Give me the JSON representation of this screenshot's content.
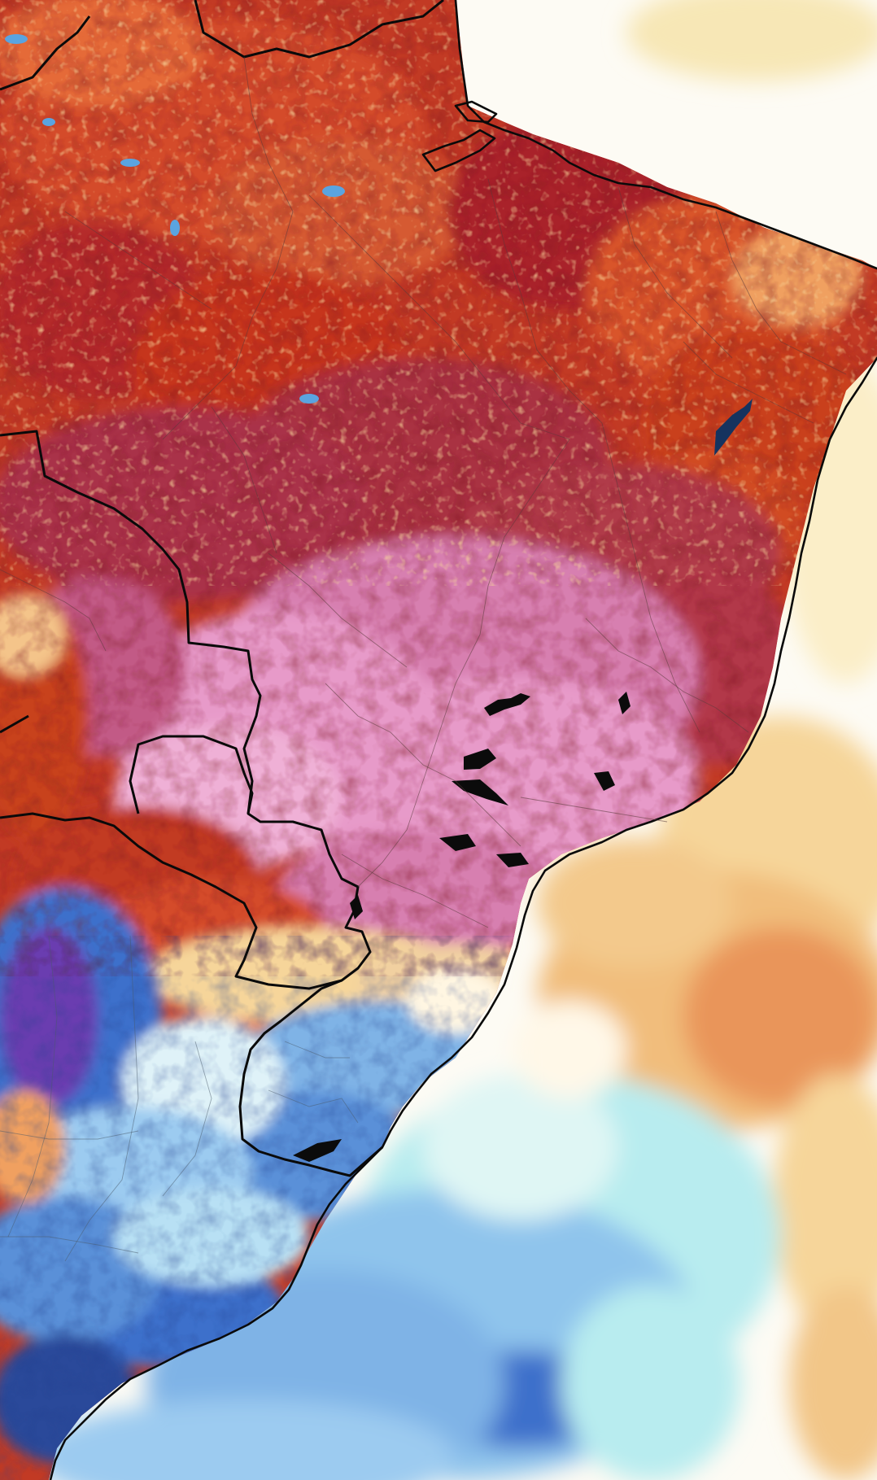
{
  "map": {
    "type": "temperature-anomaly",
    "colors": {
      "ocean_white": "#fdfbf4",
      "warm_light": "#f6d59a",
      "warm_orange": "#e9955a",
      "warm_red": "#c8321f",
      "hot_dark_red": "#9e1c1c",
      "hot_maroon": "#b03a4a",
      "extreme_pink": "#e79ac9",
      "extreme_pink_light": "#efb0d6",
      "cool_light_blue": "#b8ecef",
      "cool_blue": "#7fb3e6",
      "cold_blue": "#3c6fcb",
      "cold_dark_blue": "#2a4a9a",
      "cold_purple": "#6b3db0",
      "boundary_line": "#0a0a0a"
    }
  }
}
